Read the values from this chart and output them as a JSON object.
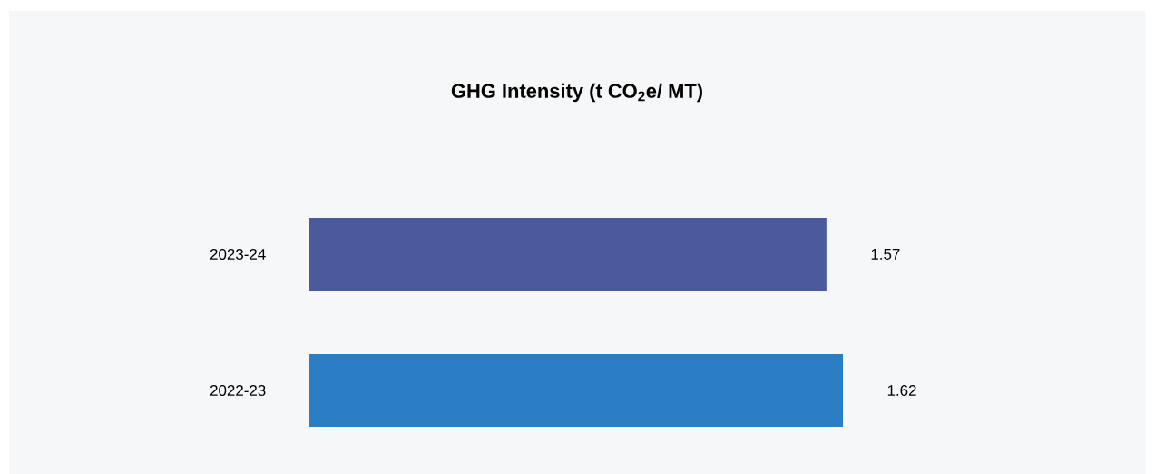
{
  "chart_data": {
    "type": "bar",
    "orientation": "horizontal",
    "title": "GHG Intensity (t CO$_{2}$e/ MT)",
    "categories": [
      "2023-24",
      "2022-23"
    ],
    "values": [
      1.57,
      1.62
    ],
    "colors": [
      "#4a5a9c",
      "#2a7fc4"
    ],
    "data_labels": true
  }
}
